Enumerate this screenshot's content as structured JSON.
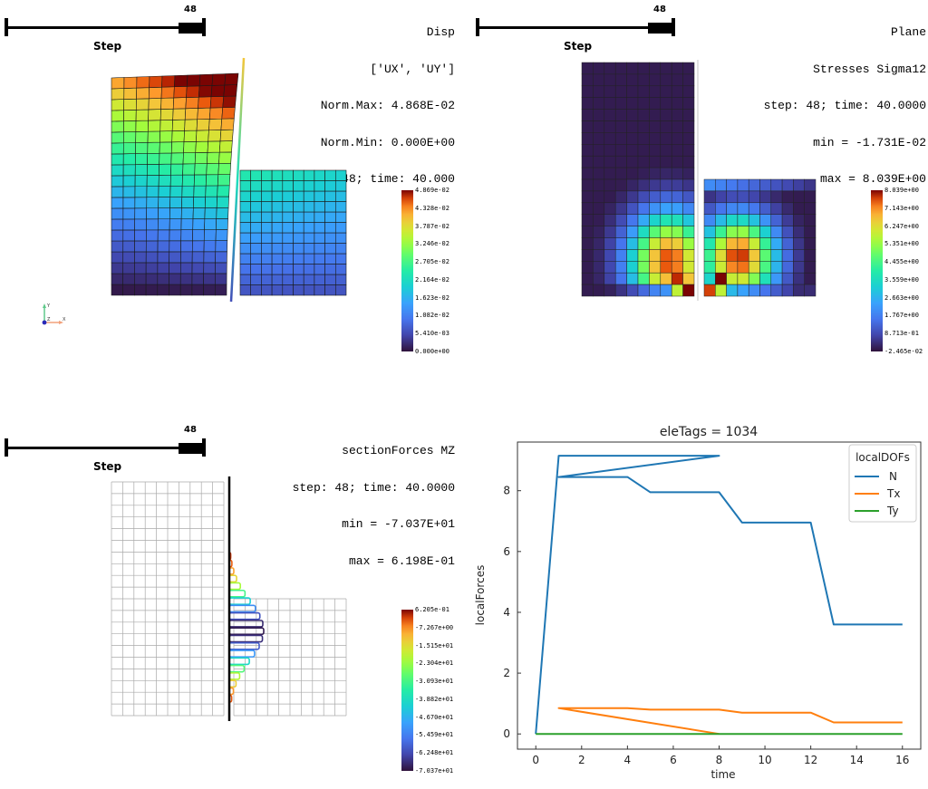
{
  "panels": {
    "disp": {
      "slider": {
        "value": "48",
        "label": "Step",
        "fraction": 1.0
      },
      "info_lines": [
        "Disp",
        "['UX', 'UY']",
        "Norm.Max: 4.868E-02",
        "Norm.Min: 0.000E+00",
        "step: 48; time: 40.000"
      ],
      "colorbar_labels": [
        "4.869e-02",
        "4.328e-02",
        "3.787e-02",
        "3.246e-02",
        "2.705e-02",
        "2.164e-02",
        "1.623e-02",
        "1.082e-02",
        "5.410e-03",
        "0.000e+00"
      ],
      "axes": {
        "y_label": "Y",
        "x_label": "X",
        "z_label": "Z"
      },
      "mesh": {
        "left_cols": 10,
        "left_rows": 20,
        "right_cols": 10,
        "right_rows": 12
      }
    },
    "stress": {
      "slider": {
        "value": "48",
        "label": "Step",
        "fraction": 1.0
      },
      "info_lines": [
        "Plane",
        "Stresses Sigma12",
        "step: 48; time: 40.0000",
        "min = -1.731E-02",
        "max = 8.039E+00"
      ],
      "colorbar_labels": [
        "8.039e+00",
        "7.143e+00",
        "6.247e+00",
        "5.351e+00",
        "4.455e+00",
        "3.559e+00",
        "2.663e+00",
        "1.767e+00",
        "8.713e-01",
        "-2.465e-02"
      ],
      "mesh": {
        "left_cols": 10,
        "left_rows": 20,
        "right_cols": 10,
        "right_rows": 10
      }
    },
    "section": {
      "slider": {
        "value": "48",
        "label": "Step",
        "fraction": 1.0
      },
      "info_lines": [
        "sectionForces MZ",
        "step: 48; time: 40.0000",
        "min = -7.037E+01",
        "max = 6.198E-01"
      ],
      "colorbar_labels": [
        "6.205e-01",
        "-7.267e+00",
        "-1.515e+01",
        "-2.304e+01",
        "-3.093e+01",
        "-3.882e+01",
        "-4.670e+01",
        "-5.459e+01",
        "-6.248e+01",
        "-7.037e+01"
      ],
      "mesh": {
        "left_cols": 10,
        "left_rows": 20,
        "right_cols": 10,
        "right_rows": 10
      }
    }
  },
  "chart_data": {
    "type": "line",
    "title": "eleTags = 1034",
    "xlabel": "time",
    "ylabel": "localForces",
    "xlim": [
      -0.8,
      16.8
    ],
    "ylim": [
      -0.5,
      9.6
    ],
    "xticks": [
      0,
      2,
      4,
      6,
      8,
      10,
      12,
      14,
      16
    ],
    "yticks": [
      0,
      2,
      4,
      6,
      8
    ],
    "grid": false,
    "legend": {
      "title": "localDOFs",
      "placement": "top-right"
    },
    "series": [
      {
        "name": "N",
        "color": "#1f77b4",
        "x": [
          0,
          1,
          8,
          1,
          4,
          5,
          8,
          9,
          12,
          13,
          16
        ],
        "y": [
          0,
          9.15,
          9.15,
          8.45,
          8.45,
          7.95,
          7.95,
          6.95,
          6.95,
          3.6,
          3.6
        ]
      },
      {
        "name": "Tx",
        "color": "#ff7f0e",
        "x": [
          8,
          1,
          4,
          5,
          8,
          9,
          12,
          13,
          16
        ],
        "y": [
          0,
          0.85,
          0.85,
          0.8,
          0.8,
          0.7,
          0.7,
          0.38,
          0.38
        ]
      },
      {
        "name": "Ty",
        "color": "#2ca02c",
        "x": [
          0,
          16
        ],
        "y": [
          0,
          0
        ]
      }
    ]
  }
}
